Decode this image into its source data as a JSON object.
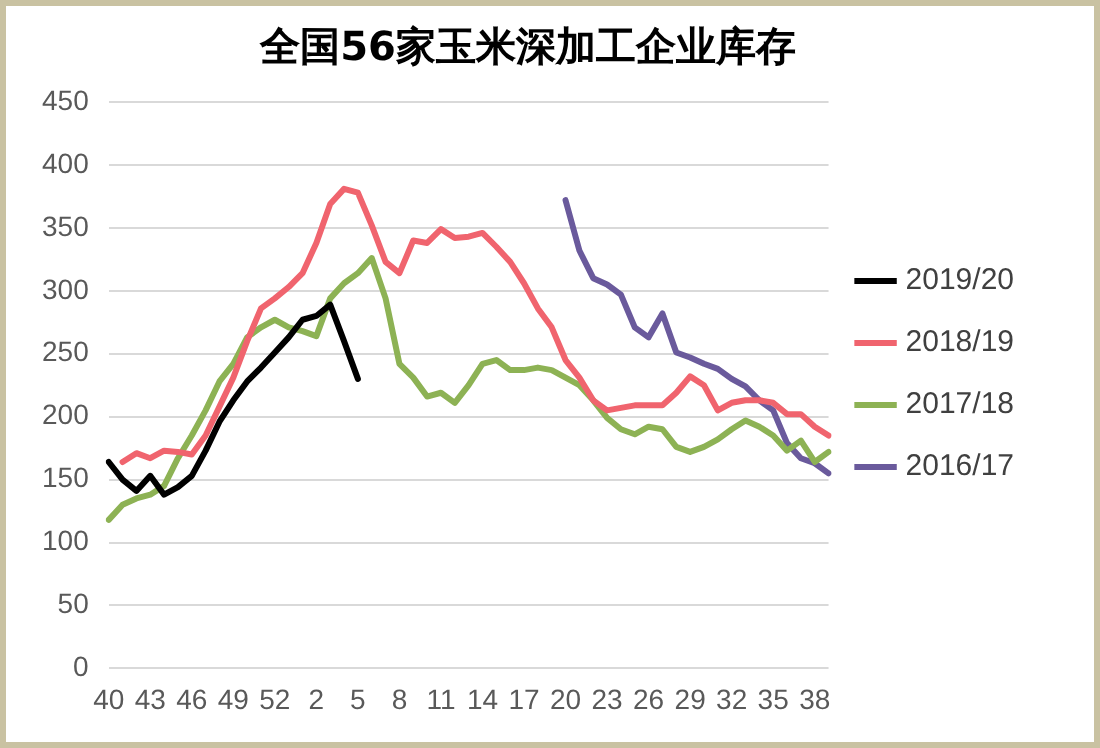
{
  "chart_data": {
    "type": "line",
    "title": "全国56家玉米深加工企业库存",
    "categories": [
      "40",
      null,
      null,
      "43",
      null,
      null,
      "46",
      null,
      null,
      "49",
      null,
      null,
      "52",
      null,
      null,
      "2",
      null,
      null,
      "5",
      null,
      null,
      "8",
      null,
      null,
      "11",
      null,
      null,
      "14",
      null,
      null,
      "17",
      null,
      null,
      "20",
      null,
      null,
      "23",
      null,
      null,
      "26",
      null,
      null,
      "29",
      null,
      null,
      "32",
      null,
      null,
      "35",
      null,
      null,
      "38",
      null
    ],
    "series": [
      {
        "name": "2019/20",
        "color": "#000000",
        "values": [
          164,
          150,
          141,
          153,
          138,
          144,
          153,
          173,
          196,
          213,
          228,
          239,
          251,
          263,
          277,
          280,
          289,
          260,
          230,
          null,
          null,
          null,
          null,
          null,
          null,
          null,
          null,
          null,
          null,
          null,
          null,
          null,
          null,
          null,
          null,
          null,
          null,
          null,
          null,
          null,
          null,
          null,
          null,
          null,
          null,
          null,
          null,
          null,
          null,
          null,
          null,
          null,
          null
        ]
      },
      {
        "name": "2018/19",
        "color": "#f0646e",
        "values": [
          null,
          164,
          171,
          167,
          173,
          172,
          170,
          185,
          208,
          231,
          260,
          286,
          294,
          303,
          314,
          338,
          369,
          381,
          378,
          352,
          323,
          314,
          340,
          338,
          349,
          342,
          343,
          346,
          335,
          323,
          306,
          286,
          271,
          245,
          231,
          213,
          205,
          207,
          209,
          209,
          209,
          219,
          232,
          225,
          205,
          211,
          213,
          213,
          211,
          202,
          202,
          192,
          185
        ]
      },
      {
        "name": "2017/18",
        "color": "#8db254",
        "values": [
          118,
          130,
          135,
          138,
          145,
          167,
          185,
          205,
          228,
          242,
          263,
          271,
          277,
          271,
          268,
          264,
          294,
          306,
          314,
          326,
          294,
          242,
          231,
          216,
          219,
          211,
          225,
          242,
          245,
          237,
          237,
          239,
          237,
          231,
          225,
          213,
          199,
          190,
          186,
          192,
          190,
          176,
          172,
          176,
          182,
          190,
          197,
          192,
          185,
          173,
          181,
          164,
          172
        ]
      },
      {
        "name": "2016/17",
        "color": "#6a5a9c",
        "values": [
          null,
          null,
          null,
          null,
          null,
          null,
          null,
          null,
          null,
          null,
          null,
          null,
          null,
          null,
          null,
          null,
          null,
          null,
          null,
          null,
          null,
          null,
          null,
          null,
          null,
          null,
          null,
          null,
          null,
          null,
          null,
          null,
          null,
          372,
          332,
          310,
          305,
          297,
          271,
          263,
          282,
          251,
          247,
          242,
          238,
          230,
          224,
          213,
          205,
          179,
          167,
          163,
          155
        ]
      }
    ],
    "ylim": [
      0,
      450
    ],
    "yticks": [
      0,
      50,
      100,
      150,
      200,
      250,
      300,
      350,
      400,
      450
    ],
    "grid": "y",
    "legend": "right",
    "marker": "none",
    "line_style": "solid"
  }
}
